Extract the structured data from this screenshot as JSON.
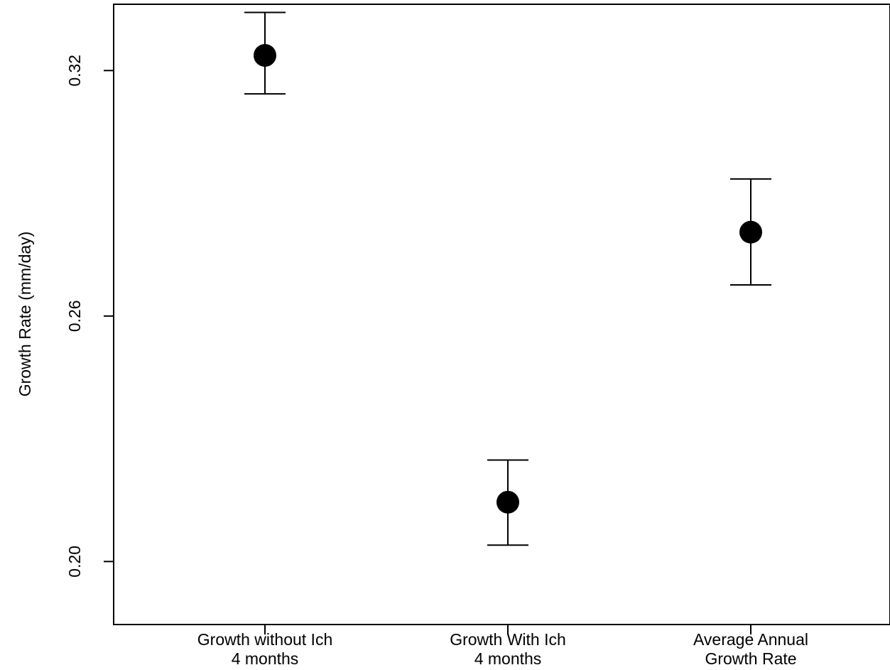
{
  "chart_data": {
    "type": "scatter",
    "title": "",
    "xlabel": "",
    "ylabel": "Growth Rate (mm/day)",
    "categories": [
      [
        "Growth without Ich",
        "4 months"
      ],
      [
        "Growth With Ich",
        "4 months"
      ],
      [
        "Average Annual",
        "Growth Rate"
      ]
    ],
    "points": [
      {
        "value": 0.3237,
        "lower": 0.3143,
        "upper": 0.3342
      },
      {
        "value": 0.2145,
        "lower": 0.204,
        "upper": 0.2248
      },
      {
        "value": 0.2805,
        "lower": 0.2676,
        "upper": 0.2935
      }
    ],
    "yticks": [
      0.2,
      0.26,
      0.32
    ],
    "ytick_labels": [
      "0.20",
      "0.26",
      "0.32"
    ],
    "ylim": [
      0.1846,
      0.3362
    ],
    "grid": false,
    "marker_color": "#000000"
  }
}
